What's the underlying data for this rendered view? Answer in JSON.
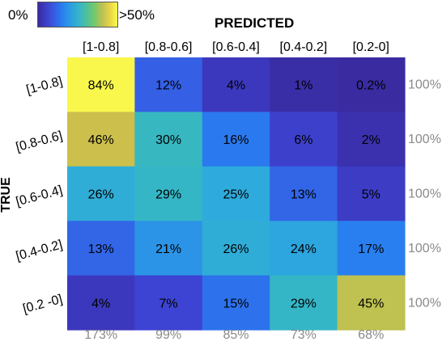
{
  "chart_data": {
    "type": "heatmap",
    "xlabel": "PREDICTED",
    "ylabel": "TRUE",
    "x_categories": [
      "[1-0.8]",
      "[0.8-0.6]",
      "[0.6-0.4]",
      "[0.4-0.2]",
      "[0.2-0]"
    ],
    "y_categories": [
      "[1-0.8]",
      "[0.8-0.6]",
      "[0.6-0.4]",
      "[0.4-0.2]",
      "[0.2 -0]"
    ],
    "values": [
      [
        84,
        12,
        4,
        1,
        0.2
      ],
      [
        46,
        30,
        16,
        6,
        2
      ],
      [
        26,
        29,
        25,
        13,
        5
      ],
      [
        13,
        21,
        26,
        24,
        17
      ],
      [
        4,
        7,
        15,
        29,
        45
      ]
    ],
    "value_labels": [
      [
        "84%",
        "12%",
        "4%",
        "1%",
        "0.2%"
      ],
      [
        "46%",
        "30%",
        "16%",
        "6%",
        "2%"
      ],
      [
        "26%",
        "29%",
        "25%",
        "13%",
        "5%"
      ],
      [
        "13%",
        "21%",
        "26%",
        "24%",
        "17%"
      ],
      [
        "4%",
        "7%",
        "15%",
        "29%",
        "45%"
      ]
    ],
    "row_totals": [
      "100%",
      "100%",
      "100%",
      "100%",
      "100%"
    ],
    "column_totals": [
      "173%",
      "99%",
      "85%",
      "73%",
      "68%"
    ],
    "colorbar": {
      "min_label": "0%",
      "max_label": ">50%",
      "range": [
        0,
        50
      ],
      "colormap": "parula"
    }
  }
}
